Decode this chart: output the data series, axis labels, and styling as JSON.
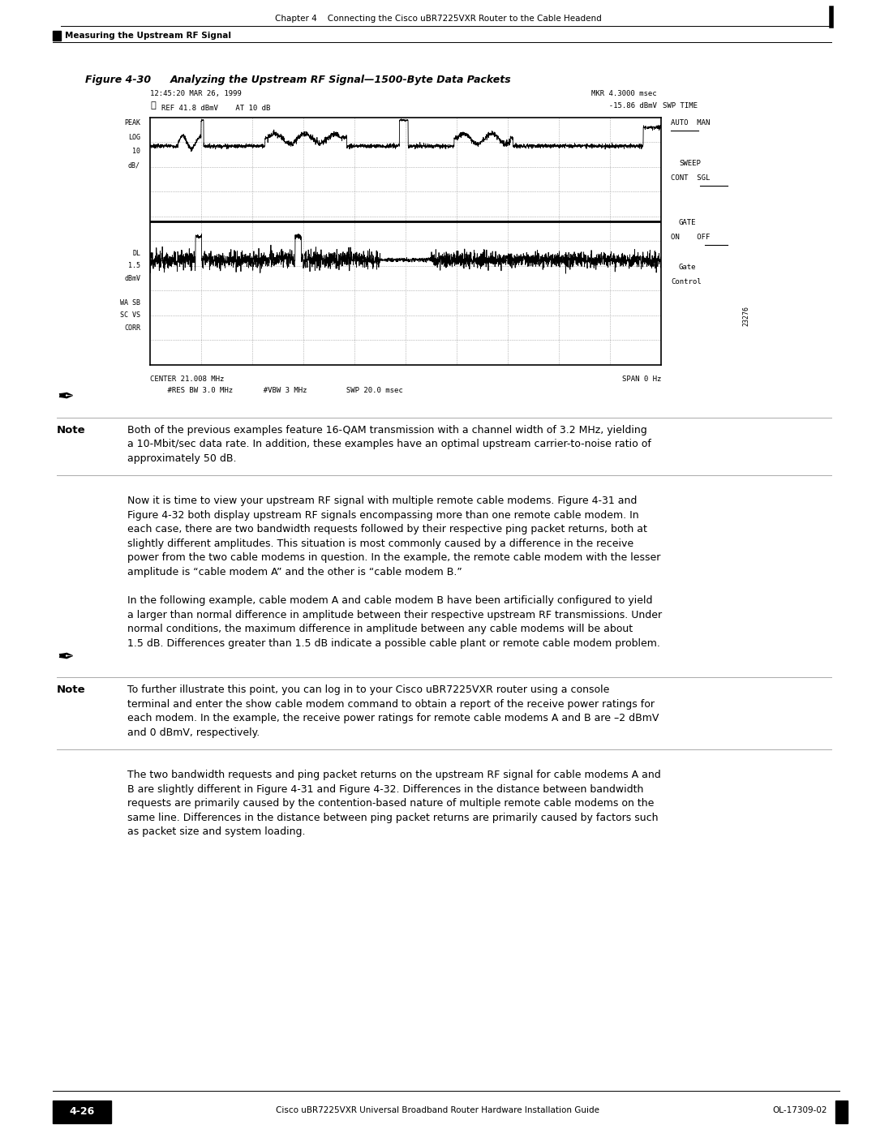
{
  "page_width": 10.8,
  "page_height": 13.97,
  "bg_color": "#ffffff",
  "header_text_chapter": "Chapter 4    Connecting the Cisco uBR7225VXR Router to the Cable Headend",
  "section_label": "Measuring the Upstream RF Signal",
  "footer_text_left": "Cisco uBR7225VXR Universal Broadband Router Hardware Installation Guide",
  "footer_text_right": "OL-17309-02",
  "footer_page": "4-26",
  "figure_title_prefix": "Figure 4-30",
  "figure_title_text": "Analyzing the Upstream RF Signal—1500-Byte Data Packets",
  "scope_header_line1": "12:45:20 MAR 26, 1999",
  "scope_header_line2_left": "REF 41.8 dBmV    AT 10 dB",
  "scope_header_mkr": "MKR 4.3000 msec",
  "scope_header_mkr2": "  -15.86 dBmV",
  "scope_header_swptime": "SWP TIME",
  "scope_footer1_left": "CENTER 21.008 MHz",
  "scope_footer1_right": "SPAN 0 Hz",
  "scope_footer2": "    #RES BW 3.0 MHz       #VBW 3 MHz         SWP 20.0 msec",
  "scope_side_num": "23276",
  "note1_text_plain": "Both of the previous examples feature 16-QAM transmission with a channel width of 3.2 MHz, yielding a 10-Mbit/sec data rate. In addition, these examples have an optimal upstream carrier-to-noise ratio of approximately 50 dB.",
  "para1_pre": "Now it is time to view your upstream RF signal with multiple remote cable modems. ",
  "para1_link1": "Figure 4-31",
  "para1_mid": " and\n",
  "para1_link2": "Figure 4-32",
  "para1_post": " both display upstream RF signals encompassing more than one remote cable modem. In\neach case, there are two bandwidth requests followed by their respective ping packet returns, both at\nslightly different amplitudes. This situation is most commonly caused by a difference in the receive\npower from the two cable modems in question. In the example, the remote cable modem with the lesser\namplitude is “cable modem A” and the other is “cable modem B.”",
  "para2_text": "In the following example, cable modem A and cable modem B have been artificially configured to yield a larger than normal difference in amplitude between their respective upstream RF transmissions. Under normal conditions, the maximum difference in amplitude between any cable modems will be about 1.5 dB. Differences greater than 1.5 dB indicate a possible cable plant or remote cable modem problem.",
  "note2_pre": "To further illustrate this point, you can log in to your Cisco uBR7225VXR router using a console terminal and enter the ",
  "note2_bold": "show cable modem",
  "note2_post": " command to obtain a report of the receive power ratings for each modem. In the example, the receive power ratings for remote cable modems A and B are –2 dBmV and 0 dBmV, respectively.",
  "para3_pre": "The two bandwidth requests and ping packet returns on the upstream RF signal for cable modems A and B are slightly different in ",
  "para3_link1": "Figure 4-31",
  "para3_mid": " and ",
  "para3_link2": "Figure 4-32",
  "para3_post": ". Differences in the distance between bandwidth requests are primarily caused by the contention-based nature of multiple remote cable modems on the same line. Differences in the distance between ping packet returns are primarily caused by factors such as packet size and system loading.",
  "link_color": "#1155cc"
}
